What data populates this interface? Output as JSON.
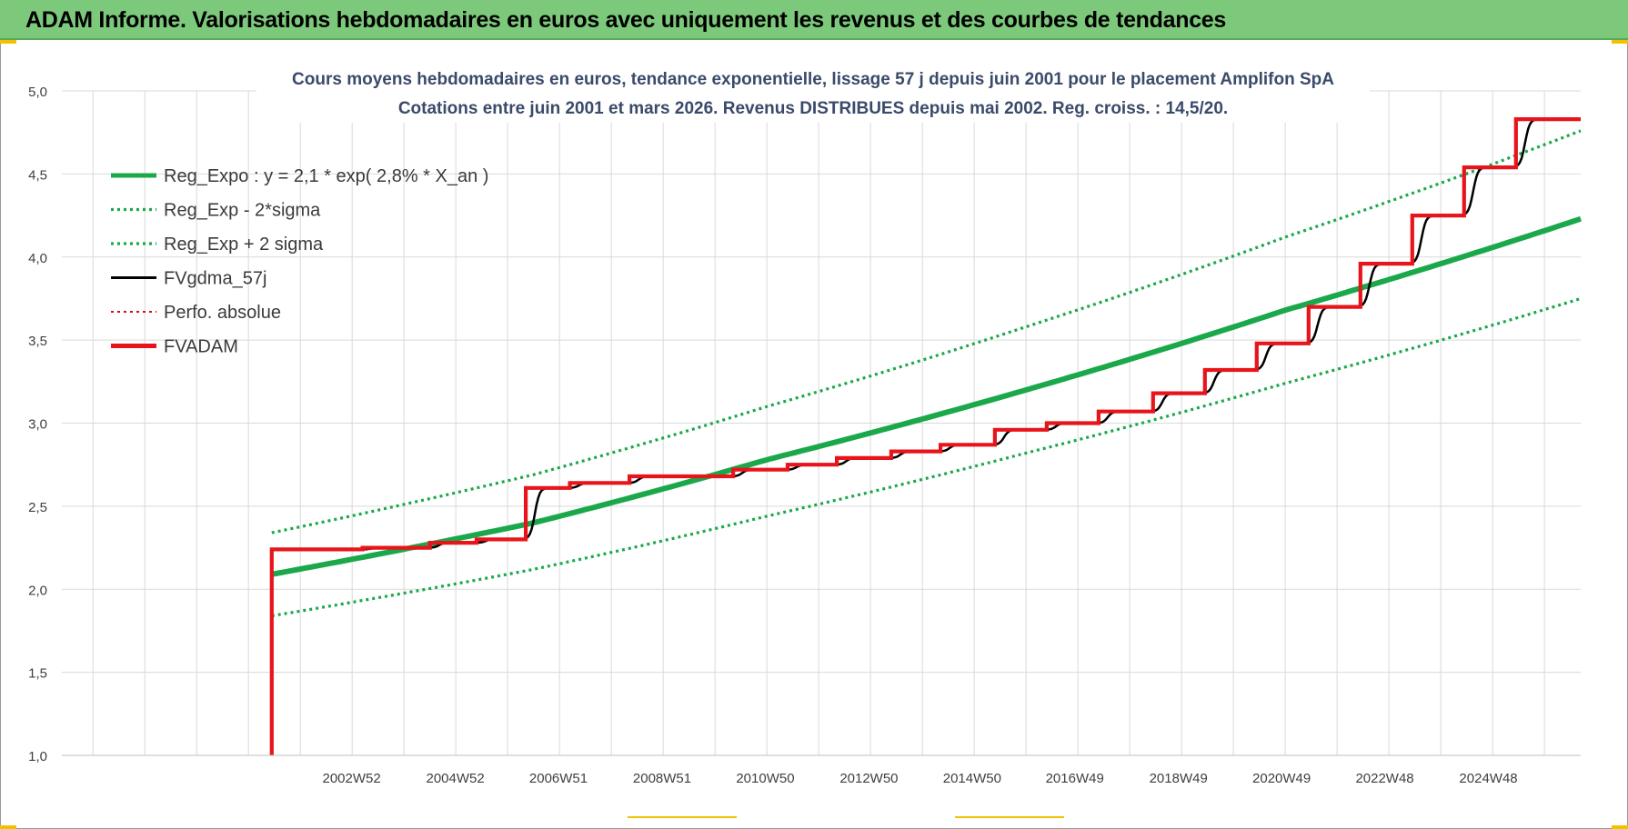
{
  "header": {
    "title": "ADAM Informe. Valorisations hebdomadaires en euros avec uniquement les revenus et des courbes de tendances"
  },
  "colors": {
    "header_bg": "#7dc97b",
    "trend": "#1aa84a",
    "fvgdma": "#000000",
    "fvadam": "#e8141b",
    "perfo": "#c0151b",
    "grid": "#d9d9d9"
  },
  "chart_data": {
    "type": "line",
    "title_line1": "Cours moyens hebdomadaires en euros, tendance exponentielle, lissage 57 j depuis juin 2001 pour le placement Amplifon SpA",
    "title_line2": "Cotations entre juin 2001 et mars 2026. Revenus DISTRIBUES depuis mai 2002. Reg. croiss. : 14,5/20.",
    "xlabel": "",
    "ylabel": "",
    "ylim": [
      1.0,
      5.0
    ],
    "xlim": [
      1997.4,
      2026.7
    ],
    "y_ticks": [
      "1,0",
      "1,5",
      "2,0",
      "2,5",
      "3,0",
      "3,5",
      "4,0",
      "4,5",
      "5,0"
    ],
    "y_tick_values": [
      1.0,
      1.5,
      2.0,
      2.5,
      3.0,
      3.5,
      4.0,
      4.5,
      5.0
    ],
    "x_ticks": [
      "2002W52",
      "2004W52",
      "2006W51",
      "2008W51",
      "2010W50",
      "2012W50",
      "2014W50",
      "2016W49",
      "2018W49",
      "2020W49",
      "2022W48",
      "2024W48"
    ],
    "x_tick_positions": [
      2002.99,
      2004.99,
      2006.98,
      2008.98,
      2010.97,
      2012.97,
      2014.96,
      2016.94,
      2018.94,
      2020.93,
      2022.92,
      2024.92
    ],
    "grid": true,
    "legend_position": "top-left",
    "legend": [
      {
        "label": "Reg_Expo : y = 2,1 * exp( 2,8% *  X_an )",
        "style": "solid-thick",
        "color": "#1aa84a"
      },
      {
        "label": "Reg_Exp - 2*sigma",
        "style": "dotted",
        "color": "#1aa84a"
      },
      {
        "label": "Reg_Exp + 2 sigma",
        "style": "dotted",
        "color": "#1aa84a"
      },
      {
        "label": "FVgdma_57j",
        "style": "solid",
        "color": "#000000"
      },
      {
        "label": "Perfo. absolue",
        "style": "dotted",
        "color": "#c0151b"
      },
      {
        "label": "FVADAM",
        "style": "solid-thick",
        "color": "#e8141b"
      }
    ],
    "series": [
      {
        "name": "Reg_Expo : y = 2,1 * exp( 2,8% *  X_an )",
        "kind": "exponential",
        "x_range": [
          2001.45,
          2026.7
        ],
        "points": [
          [
            2001.45,
            2.09
          ],
          [
            2006.5,
            2.4
          ],
          [
            2011.0,
            2.78
          ],
          [
            2016.0,
            3.2
          ],
          [
            2021.0,
            3.68
          ],
          [
            2026.7,
            4.23
          ]
        ]
      },
      {
        "name": "Reg_Exp - 2*sigma",
        "kind": "exponential",
        "points": [
          [
            2001.45,
            1.84
          ],
          [
            2006.5,
            2.12
          ],
          [
            2011.0,
            2.44
          ],
          [
            2016.0,
            2.82
          ],
          [
            2021.0,
            3.24
          ],
          [
            2026.7,
            3.75
          ]
        ]
      },
      {
        "name": "Reg_Exp + 2 sigma",
        "kind": "exponential",
        "points": [
          [
            2001.45,
            2.34
          ],
          [
            2006.5,
            2.69
          ],
          [
            2011.0,
            3.1
          ],
          [
            2016.0,
            3.58
          ],
          [
            2021.0,
            4.12
          ],
          [
            2026.7,
            4.76
          ]
        ]
      },
      {
        "name": "FVADAM",
        "kind": "step",
        "start": [
          2001.45,
          1.0
        ],
        "steps": [
          [
            2001.45,
            2.24
          ],
          [
            2003.2,
            2.25
          ],
          [
            2004.5,
            2.28
          ],
          [
            2005.4,
            2.3
          ],
          [
            2006.35,
            2.61
          ],
          [
            2007.2,
            2.64
          ],
          [
            2008.35,
            2.68
          ],
          [
            2010.35,
            2.72
          ],
          [
            2011.4,
            2.75
          ],
          [
            2012.35,
            2.79
          ],
          [
            2013.4,
            2.83
          ],
          [
            2014.35,
            2.87
          ],
          [
            2015.4,
            2.96
          ],
          [
            2016.4,
            3.0
          ],
          [
            2017.4,
            3.07
          ],
          [
            2018.45,
            3.18
          ],
          [
            2019.45,
            3.32
          ],
          [
            2020.45,
            3.48
          ],
          [
            2021.45,
            3.7
          ],
          [
            2022.45,
            3.96
          ],
          [
            2023.45,
            4.25
          ],
          [
            2024.45,
            4.54
          ],
          [
            2025.45,
            4.83
          ],
          [
            2026.7,
            4.83
          ]
        ]
      }
    ]
  }
}
